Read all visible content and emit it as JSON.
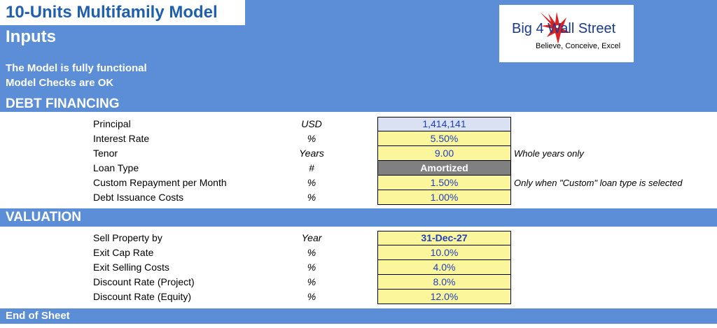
{
  "header": {
    "title": "10-Units Multifamily Model",
    "section": "Inputs",
    "status_lines": [
      "The Model is fully functional",
      "Model Checks are OK"
    ]
  },
  "logo": {
    "name": "Big 4 Wall Street",
    "tagline": "Believe, Conceive, Excel",
    "icon": "eagle-icon",
    "colors": {
      "eagle": "#e02020",
      "text": "#1a3a8c"
    }
  },
  "colors": {
    "band": "#5b8ed6",
    "input_cell": "#fbf59c",
    "calc_cell": "#d9e1f2",
    "select_cell": "#808080",
    "value_text": "#1f3fbf"
  },
  "debt_financing": {
    "title": "DEBT FINANCING",
    "rows": [
      {
        "label": "Principal",
        "unit": "USD",
        "value": "1,414,141",
        "note": ""
      },
      {
        "label": "Interest Rate",
        "unit": "%",
        "value": "5.50%",
        "note": ""
      },
      {
        "label": "Tenor",
        "unit": "Years",
        "value": "9.00",
        "note": "Whole years only"
      },
      {
        "label": "Loan Type",
        "unit": "#",
        "value": "Amortized",
        "note": ""
      },
      {
        "label": "Custom Repayment per Month",
        "unit": "%",
        "value": "1.50%",
        "note": "Only when \"Custom\" loan type is selected"
      },
      {
        "label": "Debt Issuance Costs",
        "unit": "%",
        "value": "1.00%",
        "note": ""
      }
    ]
  },
  "valuation": {
    "title": "VALUATION",
    "rows": [
      {
        "label": "Sell Property by",
        "unit": "Year",
        "value": "31-Dec-27"
      },
      {
        "label": "Exit Cap Rate",
        "unit": "%",
        "value": "10.0%"
      },
      {
        "label": "Exit Selling Costs",
        "unit": "%",
        "value": "4.0%"
      },
      {
        "label": "Discount Rate (Project)",
        "unit": "%",
        "value": "8.0%"
      },
      {
        "label": "Discount Rate (Equity)",
        "unit": "%",
        "value": "12.0%"
      }
    ]
  },
  "footer": {
    "text": "End of Sheet"
  }
}
